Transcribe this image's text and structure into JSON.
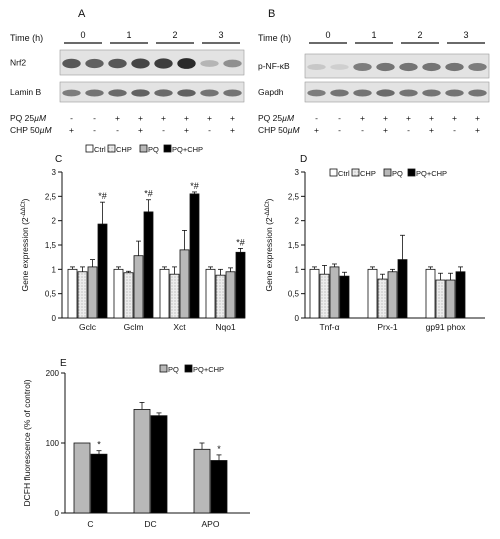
{
  "panels": {
    "A": {
      "letter": "A",
      "time_label": "Time (h)",
      "time_points": [
        "0",
        "1",
        "2",
        "3"
      ],
      "blots": [
        "Nrf2",
        "Lamin B"
      ],
      "pq_label": "PQ 25",
      "cp_label": "CHP 50",
      "unit": "µM",
      "pq_signs": [
        "-",
        "-",
        "+",
        "+",
        "+",
        "+",
        "+",
        "+"
      ],
      "chp_signs": [
        "+",
        "-",
        "-",
        "+",
        "-",
        "+",
        "-",
        "+"
      ]
    },
    "B": {
      "letter": "B",
      "time_label": "Time (h)",
      "time_points": [
        "0",
        "1",
        "2",
        "3"
      ],
      "blots": [
        "p-NF-κB",
        "Gapdh"
      ],
      "pq_label": "PQ 25",
      "cp_label": "CHP 50",
      "unit": "µM",
      "pq_signs": [
        "-",
        "-",
        "+",
        "+",
        "+",
        "+",
        "+",
        "+"
      ],
      "chp_signs": [
        "+",
        "-",
        "-",
        "+",
        "-",
        "+",
        "-",
        "+"
      ]
    }
  },
  "colors": {
    "ctrl": "#ffffff",
    "chp": "#e4e4e4",
    "pq": "#b8b8b8",
    "pq_chp": "#000000",
    "blot_bg": "#e3e3e3",
    "band": "#2a2a2a"
  },
  "chart_data": [
    {
      "id": "C",
      "letter": "C",
      "type": "bar",
      "ylabel": "Gene expression (2",
      "ylabel_sup": "-ΔΔCt",
      "ylabel_close": ")",
      "ylim": [
        0,
        3
      ],
      "yticks": [
        "0",
        "0,5",
        "1",
        "1,5",
        "2",
        "2,5",
        "3"
      ],
      "categories": [
        "Gclc",
        "Gclm",
        "Xct",
        "Nqo1"
      ],
      "legend": [
        "Ctrl",
        "CHP",
        "PQ",
        "PQ+CHP"
      ],
      "series": [
        {
          "name": "Ctrl",
          "values": [
            1.0,
            1.0,
            1.0,
            1.0
          ],
          "errors": [
            0.05,
            0.05,
            0.05,
            0.05
          ]
        },
        {
          "name": "CHP",
          "values": [
            0.95,
            0.93,
            0.9,
            0.88
          ],
          "errors": [
            0.1,
            0.03,
            0.15,
            0.12
          ]
        },
        {
          "name": "PQ",
          "values": [
            1.05,
            1.28,
            1.4,
            0.95
          ],
          "errors": [
            0.15,
            0.3,
            0.4,
            0.08
          ]
        },
        {
          "name": "PQ+CHP",
          "values": [
            1.93,
            2.18,
            2.55,
            1.35
          ],
          "errors": [
            0.45,
            0.25,
            0.04,
            0.08
          ]
        }
      ],
      "annotations": [
        "*#",
        "*#",
        "*#",
        "*#"
      ]
    },
    {
      "id": "D",
      "letter": "D",
      "type": "bar",
      "ylabel": "Gene expression (2",
      "ylabel_sup": "-ΔΔCt",
      "ylabel_close": ")",
      "ylim": [
        0,
        3
      ],
      "yticks": [
        "0",
        "0,5",
        "1",
        "1,5",
        "2",
        "2,5",
        "3"
      ],
      "categories": [
        "Tnf-α",
        "Prx-1",
        "gp91 phox"
      ],
      "legend": [
        "Ctrl",
        "CHP",
        "PQ",
        "PQ+CHP"
      ],
      "series": [
        {
          "name": "Ctrl",
          "values": [
            1.0,
            1.0,
            1.0
          ],
          "errors": [
            0.05,
            0.05,
            0.05
          ]
        },
        {
          "name": "CHP",
          "values": [
            0.9,
            0.8,
            0.78
          ],
          "errors": [
            0.18,
            0.1,
            0.14
          ]
        },
        {
          "name": "PQ",
          "values": [
            1.05,
            0.95,
            0.78
          ],
          "errors": [
            0.06,
            0.05,
            0.14
          ]
        },
        {
          "name": "PQ+CHP",
          "values": [
            0.86,
            1.2,
            0.95
          ],
          "errors": [
            0.08,
            0.5,
            0.1
          ]
        }
      ]
    },
    {
      "id": "E",
      "letter": "E",
      "type": "bar",
      "ylabel": "DCFH fluorescence (% of control)",
      "ylim": [
        0,
        200
      ],
      "yticks": [
        "0",
        "100",
        "200"
      ],
      "categories": [
        "C",
        "DC",
        "APO"
      ],
      "legend": [
        "PQ",
        "PQ+CHP"
      ],
      "series": [
        {
          "name": "PQ",
          "values": [
            100,
            148,
            91
          ],
          "errors": [
            0,
            10,
            9
          ]
        },
        {
          "name": "PQ+CHP",
          "values": [
            84,
            139,
            75
          ],
          "errors": [
            5,
            4,
            8
          ]
        }
      ],
      "annotations": [
        "*",
        "",
        "*"
      ]
    }
  ]
}
